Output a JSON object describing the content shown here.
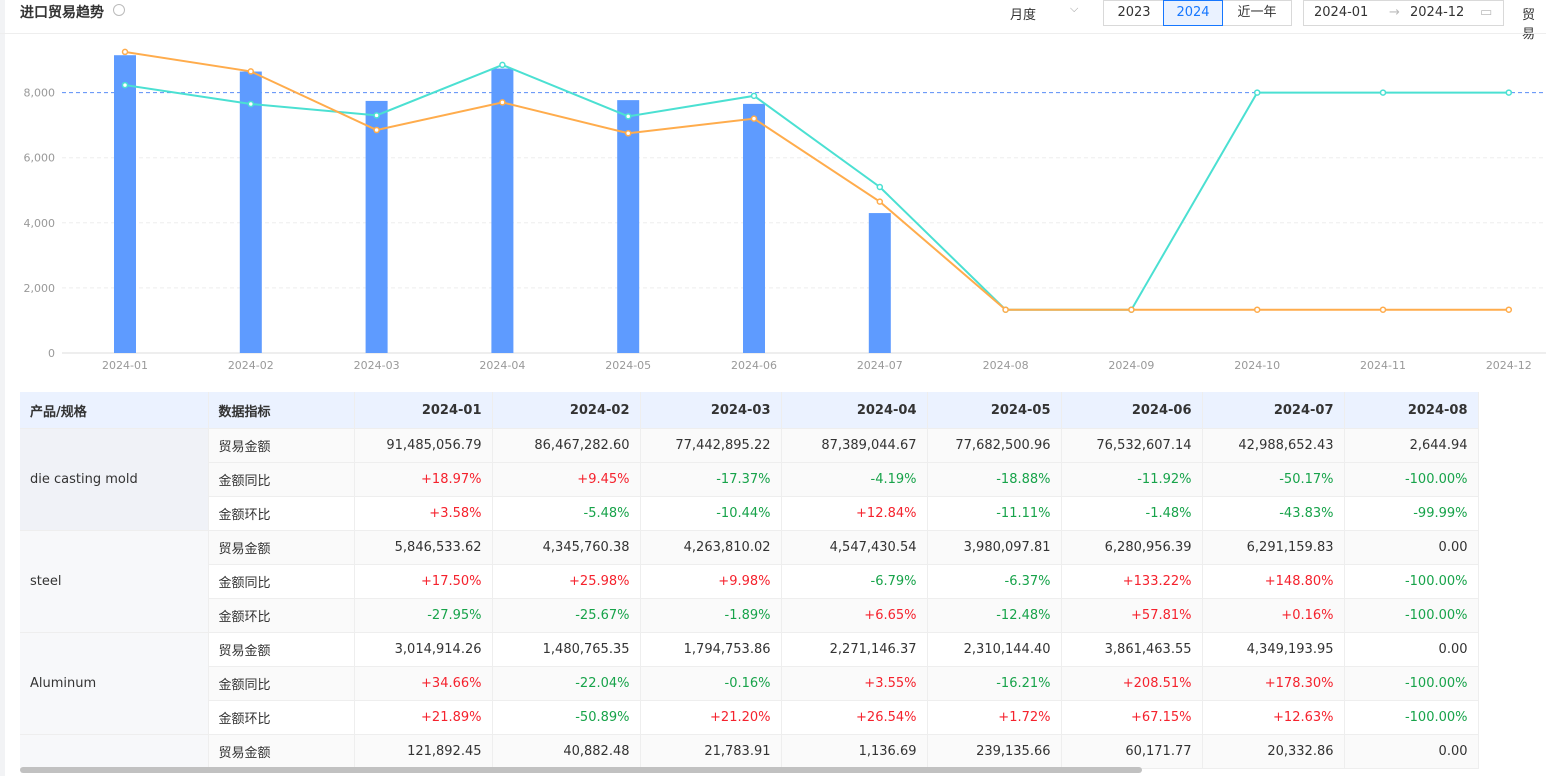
{
  "header": {
    "title": "进口贸易趋势",
    "granularity": "月度",
    "year_buttons": [
      "2023",
      "2024",
      "近一年"
    ],
    "active_year": "2024",
    "range_start": "2024-01",
    "range_end": "2024-12",
    "extra": "贸易"
  },
  "chart_data": {
    "type": "bar_line",
    "categories": [
      "2024-01",
      "2024-02",
      "2024-03",
      "2024-04",
      "2024-05",
      "2024-06",
      "2024-07",
      "2024-08",
      "2024-09",
      "2024-10",
      "2024-11",
      "2024-12"
    ],
    "series": [
      {
        "kind": "bar",
        "color": "#5e9bff",
        "values": [
          9148.51,
          8646.73,
          7744.29,
          8738.9,
          7768.25,
          7653.26,
          4298.87,
          0.26,
          null,
          null,
          null,
          null
        ]
      },
      {
        "kind": "line",
        "color": "#4be0d2",
        "values": [
          8230,
          7650,
          7300,
          8850,
          7270,
          7900,
          5100,
          1330,
          1330,
          8000,
          8000,
          8000
        ]
      },
      {
        "kind": "line",
        "color": "#ffac4c",
        "values": [
          9250,
          8650,
          6850,
          7700,
          6750,
          7200,
          4650,
          1330,
          1330,
          1330,
          1330,
          1330
        ]
      }
    ],
    "mark_line": 8000,
    "mark_line_color": "#5b8ff9",
    "ylim": [
      0,
      9800
    ],
    "yticks": [
      0,
      {
        "value": 2000,
        "label": "2,000"
      },
      {
        "value": 4000,
        "label": "4,000"
      },
      {
        "value": 6000,
        "label": "6,000"
      },
      {
        "value": 8000,
        "label": "8,000"
      }
    ],
    "grid": true
  },
  "table": {
    "columns": [
      "产品/规格",
      "数据指标",
      "2024-01",
      "2024-02",
      "2024-03",
      "2024-04",
      "2024-05",
      "2024-06",
      "2024-07",
      "2024-08"
    ],
    "groups": [
      {
        "product": "die casting mold",
        "rows": [
          {
            "metric": "贸易金额",
            "values": [
              "91,485,056.79",
              "86,467,282.60",
              "77,442,895.22",
              "87,389,044.67",
              "77,682,500.96",
              "76,532,607.14",
              "42,988,652.43",
              "2,644.94"
            ]
          },
          {
            "metric": "金额同比",
            "values": [
              "+18.97%",
              "+9.45%",
              "-17.37%",
              "-4.19%",
              "-18.88%",
              "-11.92%",
              "-50.17%",
              "-100.00%"
            ]
          },
          {
            "metric": "金额环比",
            "values": [
              "+3.58%",
              "-5.48%",
              "-10.44%",
              "+12.84%",
              "-11.11%",
              "-1.48%",
              "-43.83%",
              "-99.99%"
            ]
          }
        ]
      },
      {
        "product": "steel",
        "rows": [
          {
            "metric": "贸易金额",
            "values": [
              "5,846,533.62",
              "4,345,760.38",
              "4,263,810.02",
              "4,547,430.54",
              "3,980,097.81",
              "6,280,956.39",
              "6,291,159.83",
              "0.00"
            ]
          },
          {
            "metric": "金额同比",
            "values": [
              "+17.50%",
              "+25.98%",
              "+9.98%",
              "-6.79%",
              "-6.37%",
              "+133.22%",
              "+148.80%",
              "-100.00%"
            ]
          },
          {
            "metric": "金额环比",
            "values": [
              "-27.95%",
              "-25.67%",
              "-1.89%",
              "+6.65%",
              "-12.48%",
              "+57.81%",
              "+0.16%",
              "-100.00%"
            ]
          }
        ]
      },
      {
        "product": "Aluminum",
        "rows": [
          {
            "metric": "贸易金额",
            "values": [
              "3,014,914.26",
              "1,480,765.35",
              "1,794,753.86",
              "2,271,146.37",
              "2,310,144.40",
              "3,861,463.55",
              "4,349,193.95",
              "0.00"
            ]
          },
          {
            "metric": "金额同比",
            "values": [
              "+34.66%",
              "-22.04%",
              "-0.16%",
              "+3.55%",
              "-16.21%",
              "+208.51%",
              "+178.30%",
              "-100.00%"
            ]
          },
          {
            "metric": "金额环比",
            "values": [
              "+21.89%",
              "-50.89%",
              "+21.20%",
              "+26.54%",
              "+1.72%",
              "+67.15%",
              "+12.63%",
              "-100.00%"
            ]
          }
        ]
      },
      {
        "rows": [
          {
            "metric": "贸易金额",
            "values": [
              "121,892.45",
              "40,882.48",
              "21,783.91",
              "1,136.69",
              "239,135.66",
              "60,171.77",
              "20,332.86",
              "0.00"
            ]
          }
        ]
      }
    ]
  }
}
